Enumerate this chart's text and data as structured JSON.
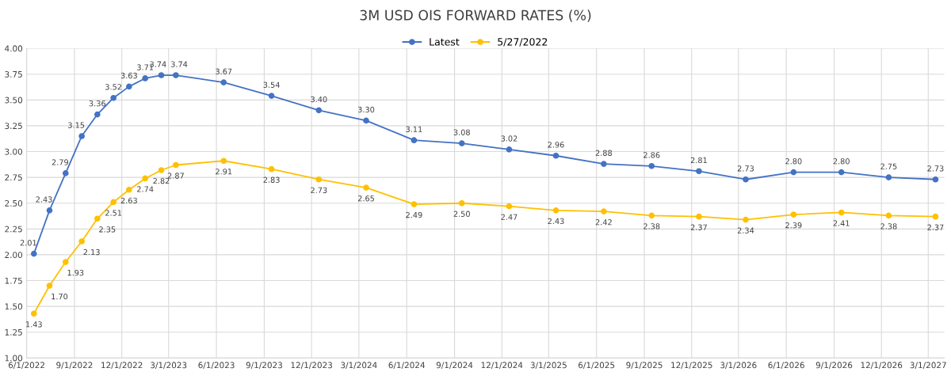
{
  "chart_data": {
    "type": "line",
    "title": "3M USD OIS FORWARD RATES (%)",
    "x": [
      "2022-06-15",
      "2022-07-15",
      "2022-08-15",
      "2022-09-15",
      "2022-10-15",
      "2022-11-15",
      "2022-12-15",
      "2023-01-15",
      "2023-02-15",
      "2023-03-15",
      "2023-06-15",
      "2023-09-15",
      "2023-12-15",
      "2024-03-15",
      "2024-06-15",
      "2024-09-15",
      "2024-12-15",
      "2025-03-15",
      "2025-06-15",
      "2025-09-15",
      "2025-12-15",
      "2026-03-15",
      "2026-06-15",
      "2026-09-15",
      "2026-12-15",
      "2027-03-15"
    ],
    "series": [
      {
        "name": "Latest",
        "color": "#4472c4",
        "values": [
          2.01,
          2.43,
          2.79,
          3.15,
          3.36,
          3.52,
          3.63,
          3.71,
          3.74,
          3.74,
          3.67,
          3.54,
          3.4,
          3.3,
          3.11,
          3.08,
          3.02,
          2.96,
          2.88,
          2.86,
          2.81,
          2.73,
          2.8,
          2.8,
          2.75,
          2.73
        ],
        "value_labels": [
          "2.01",
          "2.43",
          "2.79",
          "3.15",
          "3.36",
          "3.52",
          "3.63",
          "3.71",
          "3.74",
          "3.74",
          "3.67",
          "3.54",
          "3.40",
          "3.30",
          "3.11",
          "3.08",
          "3.02",
          "2.96",
          "2.88",
          "2.86",
          "2.81",
          "2.73",
          "2.80",
          "2.80",
          "2.75",
          "2.73"
        ]
      },
      {
        "name": "5/27/2022",
        "color": "#ffc000",
        "values": [
          1.43,
          1.7,
          1.93,
          2.13,
          2.35,
          2.51,
          2.63,
          2.74,
          2.82,
          2.87,
          2.91,
          2.83,
          2.73,
          2.65,
          2.49,
          2.5,
          2.47,
          2.43,
          2.42,
          2.38,
          2.37,
          2.34,
          2.39,
          2.41,
          2.38,
          2.37
        ],
        "value_labels": [
          "1.43",
          "1.70",
          "1.93",
          "2.13",
          "2.35",
          "2.51",
          "2.63",
          "2.74",
          "2.82",
          "2.87",
          "2.91",
          "2.83",
          "2.73",
          "2.65",
          "2.49",
          "2.50",
          "2.47",
          "2.43",
          "2.42",
          "2.38",
          "2.37",
          "2.34",
          "2.39",
          "2.41",
          "2.38",
          "2.37"
        ]
      }
    ],
    "xlim": [
      "2022-06-01",
      "2027-04-01"
    ],
    "xticks": [
      {
        "value": "2022-06-01",
        "label": "6/1/2022"
      },
      {
        "value": "2022-09-01",
        "label": "9/1/2022"
      },
      {
        "value": "2022-12-01",
        "label": "12/1/2022"
      },
      {
        "value": "2023-03-01",
        "label": "3/1/2023"
      },
      {
        "value": "2023-06-01",
        "label": "6/1/2023"
      },
      {
        "value": "2023-09-01",
        "label": "9/1/2023"
      },
      {
        "value": "2023-12-01",
        "label": "12/1/2023"
      },
      {
        "value": "2024-03-01",
        "label": "3/1/2024"
      },
      {
        "value": "2024-06-01",
        "label": "6/1/2024"
      },
      {
        "value": "2024-09-01",
        "label": "9/1/2024"
      },
      {
        "value": "2024-12-01",
        "label": "12/1/2024"
      },
      {
        "value": "2025-03-01",
        "label": "3/1/2025"
      },
      {
        "value": "2025-06-01",
        "label": "6/1/2025"
      },
      {
        "value": "2025-09-01",
        "label": "9/1/2025"
      },
      {
        "value": "2025-12-01",
        "label": "12/1/2025"
      },
      {
        "value": "2026-03-01",
        "label": "3/1/2026"
      },
      {
        "value": "2026-06-01",
        "label": "6/1/2026"
      },
      {
        "value": "2026-09-01",
        "label": "9/1/2026"
      },
      {
        "value": "2026-12-01",
        "label": "12/1/2026"
      },
      {
        "value": "2027-03-01",
        "label": "3/1/2027"
      }
    ],
    "ylim": [
      1.0,
      4.0
    ],
    "yticks": [
      {
        "value": 1.0,
        "label": "1.00"
      },
      {
        "value": 1.25,
        "label": "1.25"
      },
      {
        "value": 1.5,
        "label": "1.50"
      },
      {
        "value": 1.75,
        "label": "1.75"
      },
      {
        "value": 2.0,
        "label": "2.00"
      },
      {
        "value": 2.25,
        "label": "2.25"
      },
      {
        "value": 2.5,
        "label": "2.50"
      },
      {
        "value": 2.75,
        "label": "2.75"
      },
      {
        "value": 3.0,
        "label": "3.00"
      },
      {
        "value": 3.25,
        "label": "3.25"
      },
      {
        "value": 3.5,
        "label": "3.50"
      },
      {
        "value": 3.75,
        "label": "3.75"
      },
      {
        "value": 4.0,
        "label": "4.00"
      }
    ],
    "grid": true,
    "legend": "top",
    "marker": "circle",
    "line_style": "solid"
  }
}
